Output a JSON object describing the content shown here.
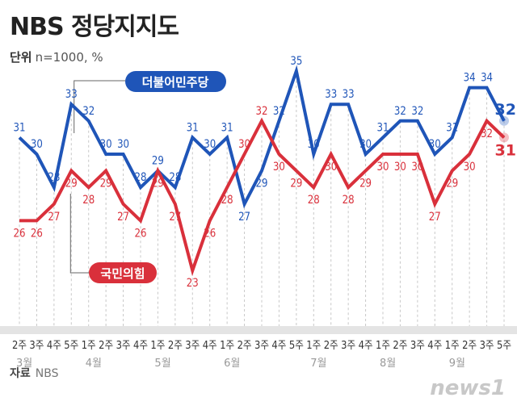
{
  "title": "NBS 정당지지도",
  "unit_label": "단위",
  "unit_value": "n=1000, %",
  "source_label": "자료",
  "source_value": "NBS",
  "logo": "news1",
  "chart_data": {
    "type": "line",
    "title": "NBS 정당지지도",
    "x": [
      "2주",
      "3주",
      "4주",
      "5주",
      "1주",
      "2주",
      "3주",
      "4주",
      "1주",
      "2주",
      "3주",
      "4주",
      "1주",
      "2주",
      "3주",
      "4주",
      "5주",
      "1주",
      "2주",
      "3주",
      "4주",
      "1주",
      "2주",
      "3주",
      "4주",
      "1주",
      "2주",
      "3주",
      "5주"
    ],
    "months": [
      {
        "label": "3월",
        "index": 0
      },
      {
        "label": "4월",
        "index": 4
      },
      {
        "label": "5월",
        "index": 8
      },
      {
        "label": "6월",
        "index": 12
      },
      {
        "label": "7월",
        "index": 17
      },
      {
        "label": "8월",
        "index": 21
      },
      {
        "label": "9월",
        "index": 25
      }
    ],
    "series": [
      {
        "name": "더불어민주당",
        "color": "#1f55b8",
        "values": [
          31,
          30,
          28,
          33,
          32,
          30,
          30,
          28,
          29,
          28,
          31,
          30,
          31,
          27,
          29,
          32,
          35,
          30,
          33,
          33,
          30,
          31,
          32,
          32,
          30,
          31,
          34,
          34,
          32
        ]
      },
      {
        "name": "국민의힘",
        "color": "#d9303b",
        "values": [
          26,
          26,
          27,
          29,
          28,
          29,
          27,
          26,
          29,
          27,
          23,
          26,
          28,
          30,
          32,
          30,
          29,
          28,
          30,
          28,
          29,
          30,
          30,
          30,
          27,
          29,
          30,
          32,
          31
        ]
      }
    ],
    "ylim": [
      23,
      35
    ],
    "grid": "vertical dashed",
    "legend": "inline labels"
  }
}
